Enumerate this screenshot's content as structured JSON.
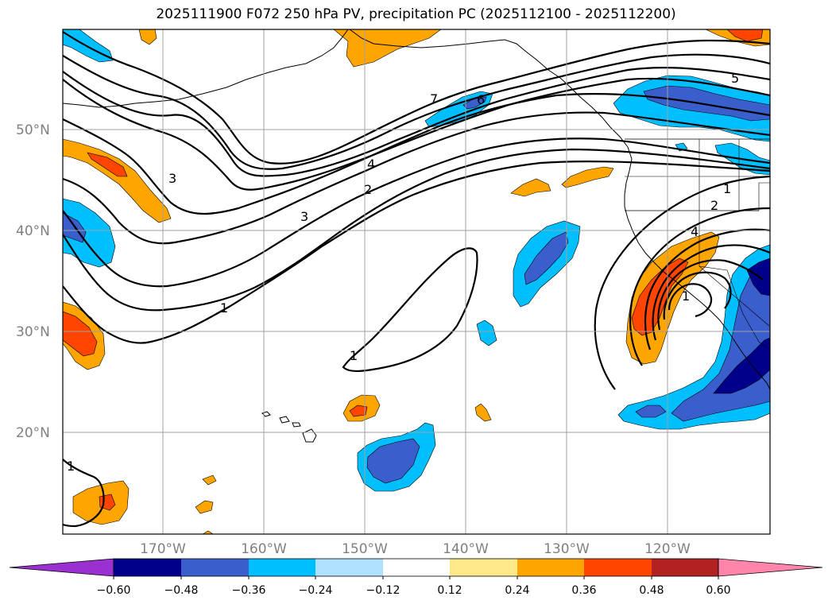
{
  "title": "2025111900 F072 250 hPa PV, precipitation PC (2025112100 - 2025112200)",
  "lat_labels": [
    "50°N",
    "40°N",
    "30°N",
    "20°N"
  ],
  "lon_labels": [
    "170°W",
    "160°W",
    "150°W",
    "140°W",
    "130°W",
    "120°W"
  ],
  "contour_labels": [
    "7",
    "6",
    "5",
    "4",
    "3",
    "3",
    "2",
    "2",
    "1",
    "1",
    "1",
    "1",
    "4",
    "1"
  ],
  "colorbar": {
    "ticks": [
      "−0.60",
      "−0.48",
      "−0.36",
      "−0.24",
      "−0.12",
      "0.12",
      "0.24",
      "0.36",
      "0.48",
      "0.60"
    ],
    "colors": [
      "#9b30d0",
      "#00008b",
      "#3a5fcd",
      "#00bfff",
      "#b0e2ff",
      "#ffffff",
      "#ffe98a",
      "#ffa500",
      "#ff4500",
      "#b22222",
      "#ff85aa"
    ]
  },
  "fill_colors": {
    "orange": "#ffa500",
    "red_orange": "#ff4500",
    "deep_sky": "#00bfff",
    "royal_blue": "#3a5fcd",
    "navy": "#00008b"
  }
}
